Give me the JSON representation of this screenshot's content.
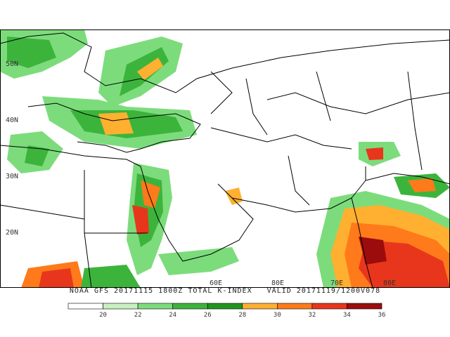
{
  "map": {
    "lat_labels": [
      "50N",
      "40N",
      "30N",
      "20N"
    ],
    "lon_labels": [
      "60E",
      "80E",
      "70E",
      "80E"
    ],
    "caption": "NOAA GFS 20171115 1800Z TOTAL K-INDEX   VALID 20171119/1200V078",
    "colorbar": {
      "ticks": [
        "20",
        "22",
        "24",
        "26",
        "28",
        "30",
        "32",
        "34",
        "36"
      ],
      "colors": [
        "#ffffff",
        "#c8f0c0",
        "#7cdc7c",
        "#3cb43c",
        "#1e961e",
        "#ffb030",
        "#ff7a1a",
        "#e8361c",
        "#9c0c0c"
      ]
    }
  }
}
